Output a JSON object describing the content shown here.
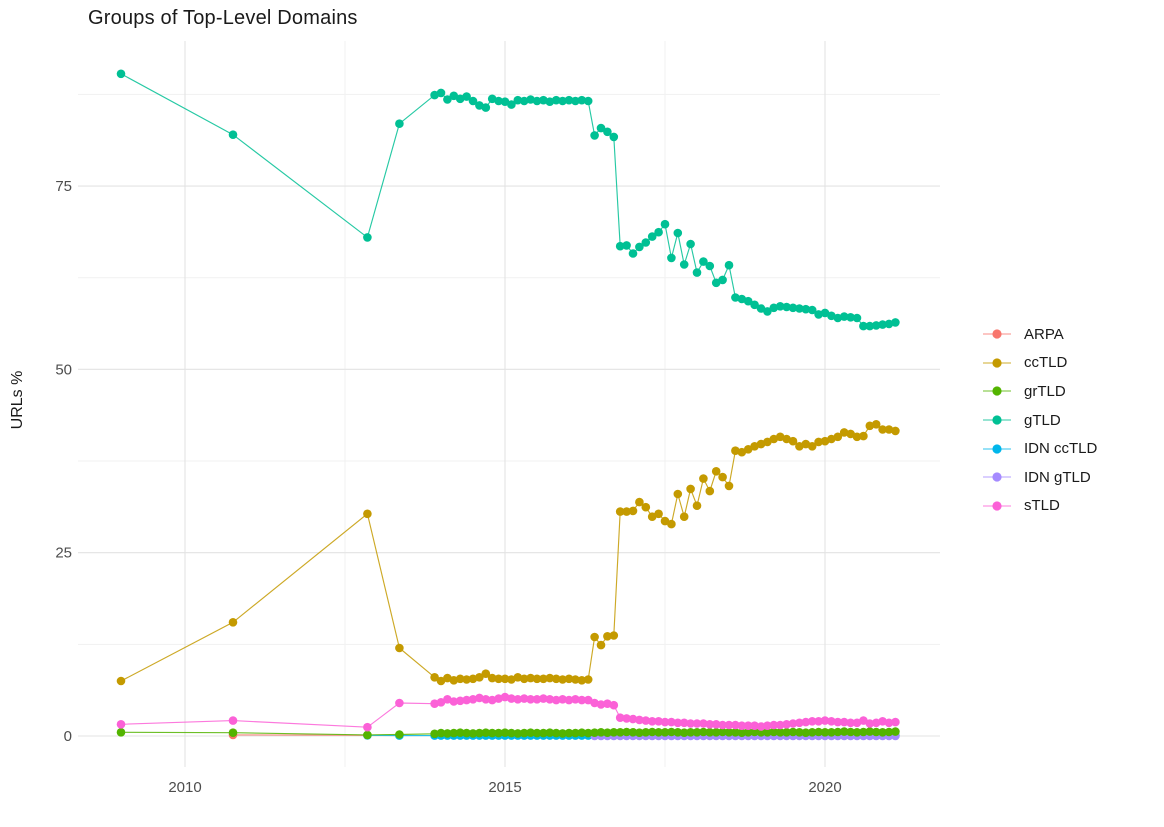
{
  "colors": {
    "background": "#FFFFFF",
    "grid_major": "#E3E3E3",
    "grid_minor": "#F1F1F1",
    "axis_text": "#4D4D4D",
    "title_text": "#1A1A1A"
  },
  "chart_data": {
    "type": "line",
    "title": "Groups of Top-Level Domains",
    "ylabel": "URLs %",
    "xlabel": "",
    "x_ticks": [
      2010,
      2015,
      2020
    ],
    "x_minor_ticks": [
      2012.5,
      2017.5
    ],
    "y_ticks": [
      0,
      25,
      50,
      75
    ],
    "y_minor_ticks": [
      12.5,
      37.5,
      62.5,
      87.5
    ],
    "x_range_years": [
      2008.4,
      2021.7
    ],
    "y_range_percent": [
      -4.5,
      94.8
    ],
    "grid": "major+minor",
    "legend_position": "right",
    "draw_order": [
      "ARPA",
      "IDN ccTLD",
      "IDN gTLD",
      "grTLD",
      "ccTLD",
      "gTLD",
      "sTLD"
    ],
    "series": [
      {
        "label": "ARPA",
        "color": "#F8766D",
        "points_pre": [
          [
            2010.75,
            0.15
          ],
          [
            2012.85,
            0.1
          ]
        ]
      },
      {
        "label": "ccTLD",
        "color": "#C49A00",
        "points_pre": [
          [
            2009.0,
            7.5
          ],
          [
            2010.75,
            15.5
          ],
          [
            2012.85,
            30.3
          ],
          [
            2013.35,
            12.0
          ]
        ],
        "dense_start": 2013.9,
        "dense_step": 0.1,
        "dense_values": [
          8.0,
          7.5,
          7.9,
          7.6,
          7.8,
          7.7,
          7.8,
          8.0,
          8.5,
          7.9,
          7.8,
          7.8,
          7.7,
          8.0,
          7.8,
          7.9,
          7.8,
          7.8,
          7.9,
          7.8,
          7.7,
          7.8,
          7.7,
          7.6,
          7.7,
          13.5,
          12.4,
          13.6,
          13.7,
          30.6,
          30.6,
          30.7,
          31.9,
          31.2,
          29.9,
          30.3,
          29.3,
          28.9,
          33.0,
          29.9,
          33.7,
          31.4,
          35.1,
          33.4,
          36.1,
          35.3,
          34.1,
          38.9,
          38.7,
          39.1,
          39.5,
          39.8,
          40.1,
          40.5,
          40.8,
          40.5,
          40.2,
          39.5,
          39.8,
          39.5,
          40.1,
          40.2,
          40.5,
          40.8,
          41.4,
          41.2,
          40.8,
          40.9,
          42.3,
          42.5,
          41.8,
          41.8,
          41.6
        ]
      },
      {
        "label": "grTLD",
        "color": "#53B400",
        "points_pre": [
          [
            2009.0,
            0.5
          ],
          [
            2010.75,
            0.45
          ],
          [
            2012.85,
            0.15
          ],
          [
            2013.35,
            0.2
          ]
        ],
        "dense_start": 2013.9,
        "dense_step": 0.1,
        "dense_values": [
          0.3,
          0.4,
          0.35,
          0.4,
          0.45,
          0.4,
          0.35,
          0.4,
          0.45,
          0.4,
          0.4,
          0.45,
          0.4,
          0.35,
          0.4,
          0.45,
          0.4,
          0.4,
          0.45,
          0.4,
          0.35,
          0.4,
          0.4,
          0.45,
          0.4,
          0.45,
          0.5,
          0.45,
          0.5,
          0.5,
          0.55,
          0.5,
          0.45,
          0.5,
          0.55,
          0.5,
          0.5,
          0.55,
          0.5,
          0.45,
          0.5,
          0.5,
          0.55,
          0.5,
          0.5,
          0.55,
          0.5,
          0.5,
          0.45,
          0.5,
          0.55,
          0.5,
          0.5,
          0.55,
          0.5,
          0.5,
          0.55,
          0.5,
          0.45,
          0.5,
          0.55,
          0.5,
          0.5,
          0.55,
          0.6,
          0.55,
          0.5,
          0.55,
          0.6,
          0.55,
          0.5,
          0.55,
          0.6
        ]
      },
      {
        "label": "gTLD",
        "color": "#00C094",
        "points_pre": [
          [
            2009.0,
            90.3
          ],
          [
            2010.75,
            82.0
          ],
          [
            2012.85,
            68.0
          ],
          [
            2013.35,
            83.5
          ]
        ],
        "dense_start": 2013.9,
        "dense_step": 0.1,
        "dense_values": [
          87.4,
          87.7,
          86.8,
          87.3,
          86.9,
          87.2,
          86.6,
          86.0,
          85.7,
          86.9,
          86.6,
          86.5,
          86.1,
          86.7,
          86.6,
          86.8,
          86.6,
          86.7,
          86.5,
          86.7,
          86.6,
          86.7,
          86.6,
          86.7,
          86.6,
          81.9,
          82.9,
          82.4,
          81.7,
          66.8,
          66.9,
          65.8,
          66.7,
          67.3,
          68.1,
          68.7,
          69.8,
          65.2,
          68.6,
          64.3,
          67.1,
          63.2,
          64.7,
          64.1,
          61.8,
          62.2,
          64.2,
          59.8,
          59.6,
          59.3,
          58.8,
          58.3,
          57.9,
          58.4,
          58.6,
          58.5,
          58.4,
          58.3,
          58.2,
          58.1,
          57.5,
          57.7,
          57.3,
          57.0,
          57.2,
          57.1,
          57.0,
          55.9,
          55.9,
          56.0,
          56.1,
          56.2,
          56.4
        ]
      },
      {
        "label": "IDN ccTLD",
        "color": "#00B6EB",
        "points_pre": [
          [
            2012.85,
            0.1
          ],
          [
            2013.35,
            0.05
          ]
        ],
        "dense_start": 2013.9,
        "dense_step": 0.1,
        "dense_fill": 0.05,
        "dense_count": 73
      },
      {
        "label": "IDN gTLD",
        "color": "#A58AFF",
        "points_pre": [],
        "dense_start": 2016.4,
        "dense_step": 0.1,
        "dense_fill": 0.02,
        "dense_count": 48
      },
      {
        "label": "sTLD",
        "color": "#FB61D7",
        "points_pre": [
          [
            2009.0,
            1.6
          ],
          [
            2010.75,
            2.1
          ],
          [
            2012.85,
            1.2
          ],
          [
            2013.35,
            4.5
          ]
        ],
        "dense_start": 2013.9,
        "dense_step": 0.1,
        "dense_values": [
          4.4,
          4.6,
          5.0,
          4.7,
          4.8,
          4.9,
          5.0,
          5.2,
          5.0,
          4.9,
          5.1,
          5.3,
          5.1,
          5.0,
          5.1,
          5.0,
          5.0,
          5.1,
          5.0,
          4.9,
          5.0,
          4.9,
          5.0,
          4.9,
          4.9,
          4.5,
          4.3,
          4.4,
          4.2,
          2.5,
          2.4,
          2.3,
          2.2,
          2.1,
          2.0,
          2.0,
          1.9,
          1.9,
          1.8,
          1.8,
          1.7,
          1.7,
          1.7,
          1.6,
          1.6,
          1.5,
          1.5,
          1.5,
          1.4,
          1.4,
          1.4,
          1.3,
          1.4,
          1.5,
          1.5,
          1.6,
          1.7,
          1.8,
          1.9,
          2.0,
          2.0,
          2.1,
          2.0,
          1.9,
          1.9,
          1.8,
          1.8,
          2.1,
          1.7,
          1.8,
          2.0,
          1.8,
          1.9
        ]
      }
    ]
  }
}
